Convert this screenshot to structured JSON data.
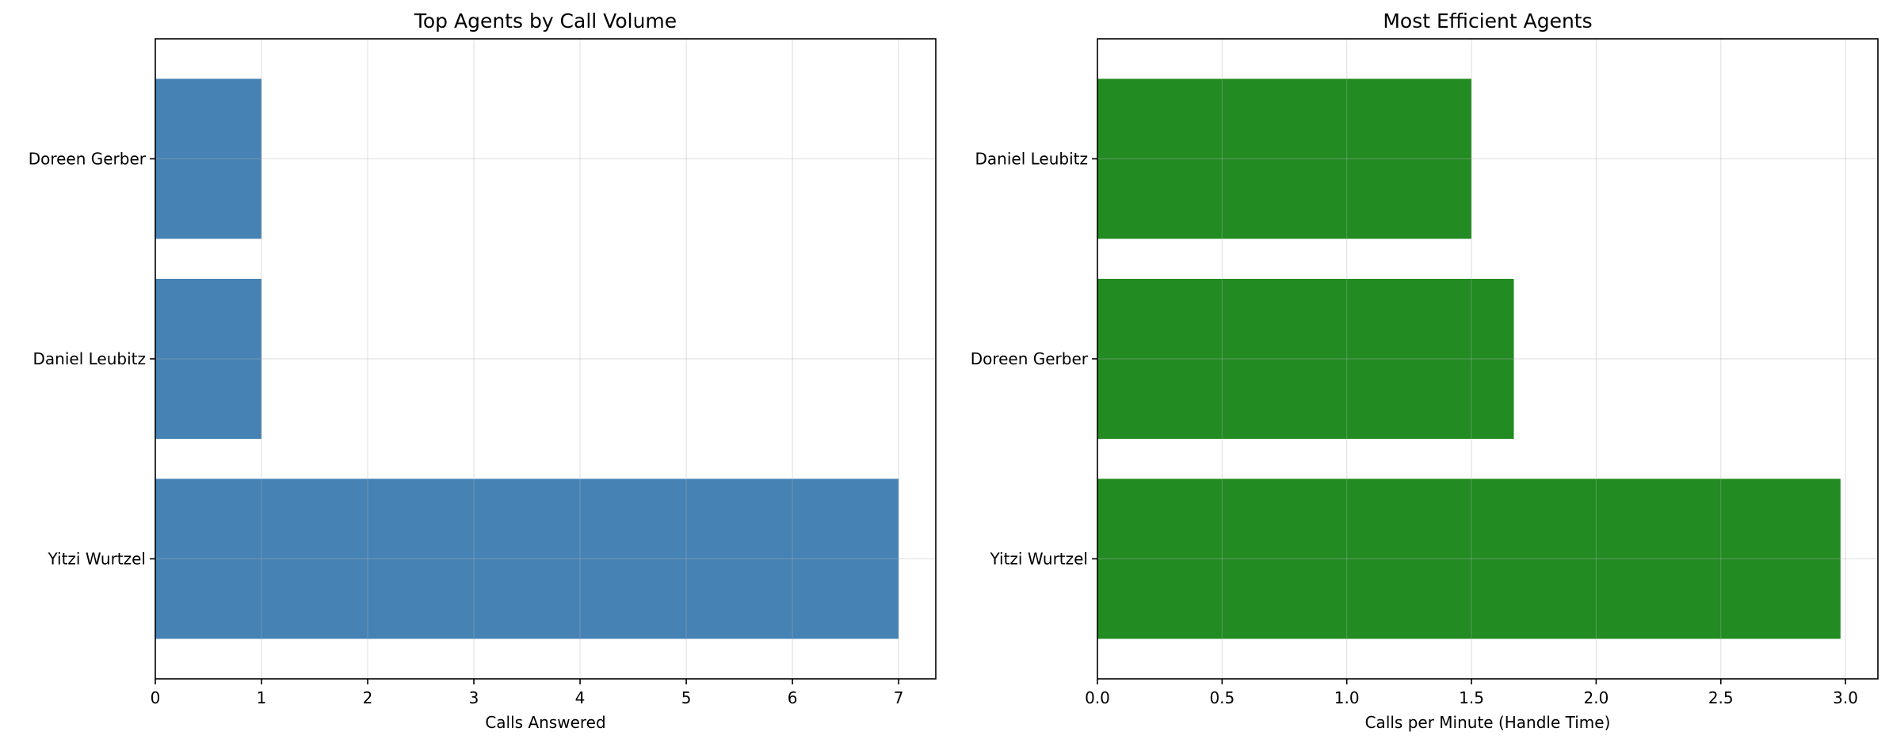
{
  "chart_data": [
    {
      "type": "bar",
      "orientation": "horizontal",
      "title": "Top Agents by Call Volume",
      "xlabel": "Calls Answered",
      "ylabel": "",
      "categories": [
        "Yitzi Wurtzel",
        "Daniel Leubitz",
        "Doreen Gerber"
      ],
      "values": [
        7,
        1,
        1
      ],
      "xlim": [
        0,
        7.35
      ],
      "xticks": [
        0,
        1,
        2,
        3,
        4,
        5,
        6,
        7
      ],
      "xtick_labels": [
        "0",
        "1",
        "2",
        "3",
        "4",
        "5",
        "6",
        "7"
      ],
      "grid": true,
      "color": "#4682b4"
    },
    {
      "type": "bar",
      "orientation": "horizontal",
      "title": "Most Efficient Agents",
      "xlabel": "Calls per Minute (Handle Time)",
      "ylabel": "",
      "categories": [
        "Yitzi Wurtzel",
        "Doreen Gerber",
        "Daniel Leubitz"
      ],
      "values": [
        2.98,
        1.67,
        1.5
      ],
      "xlim": [
        0,
        3.13
      ],
      "xticks": [
        0,
        0.5,
        1,
        1.5,
        2,
        2.5,
        3
      ],
      "xtick_labels": [
        "0.0",
        "0.5",
        "1.0",
        "1.5",
        "2.0",
        "2.5",
        "3.0"
      ],
      "grid": true,
      "color": "#228b22"
    }
  ]
}
